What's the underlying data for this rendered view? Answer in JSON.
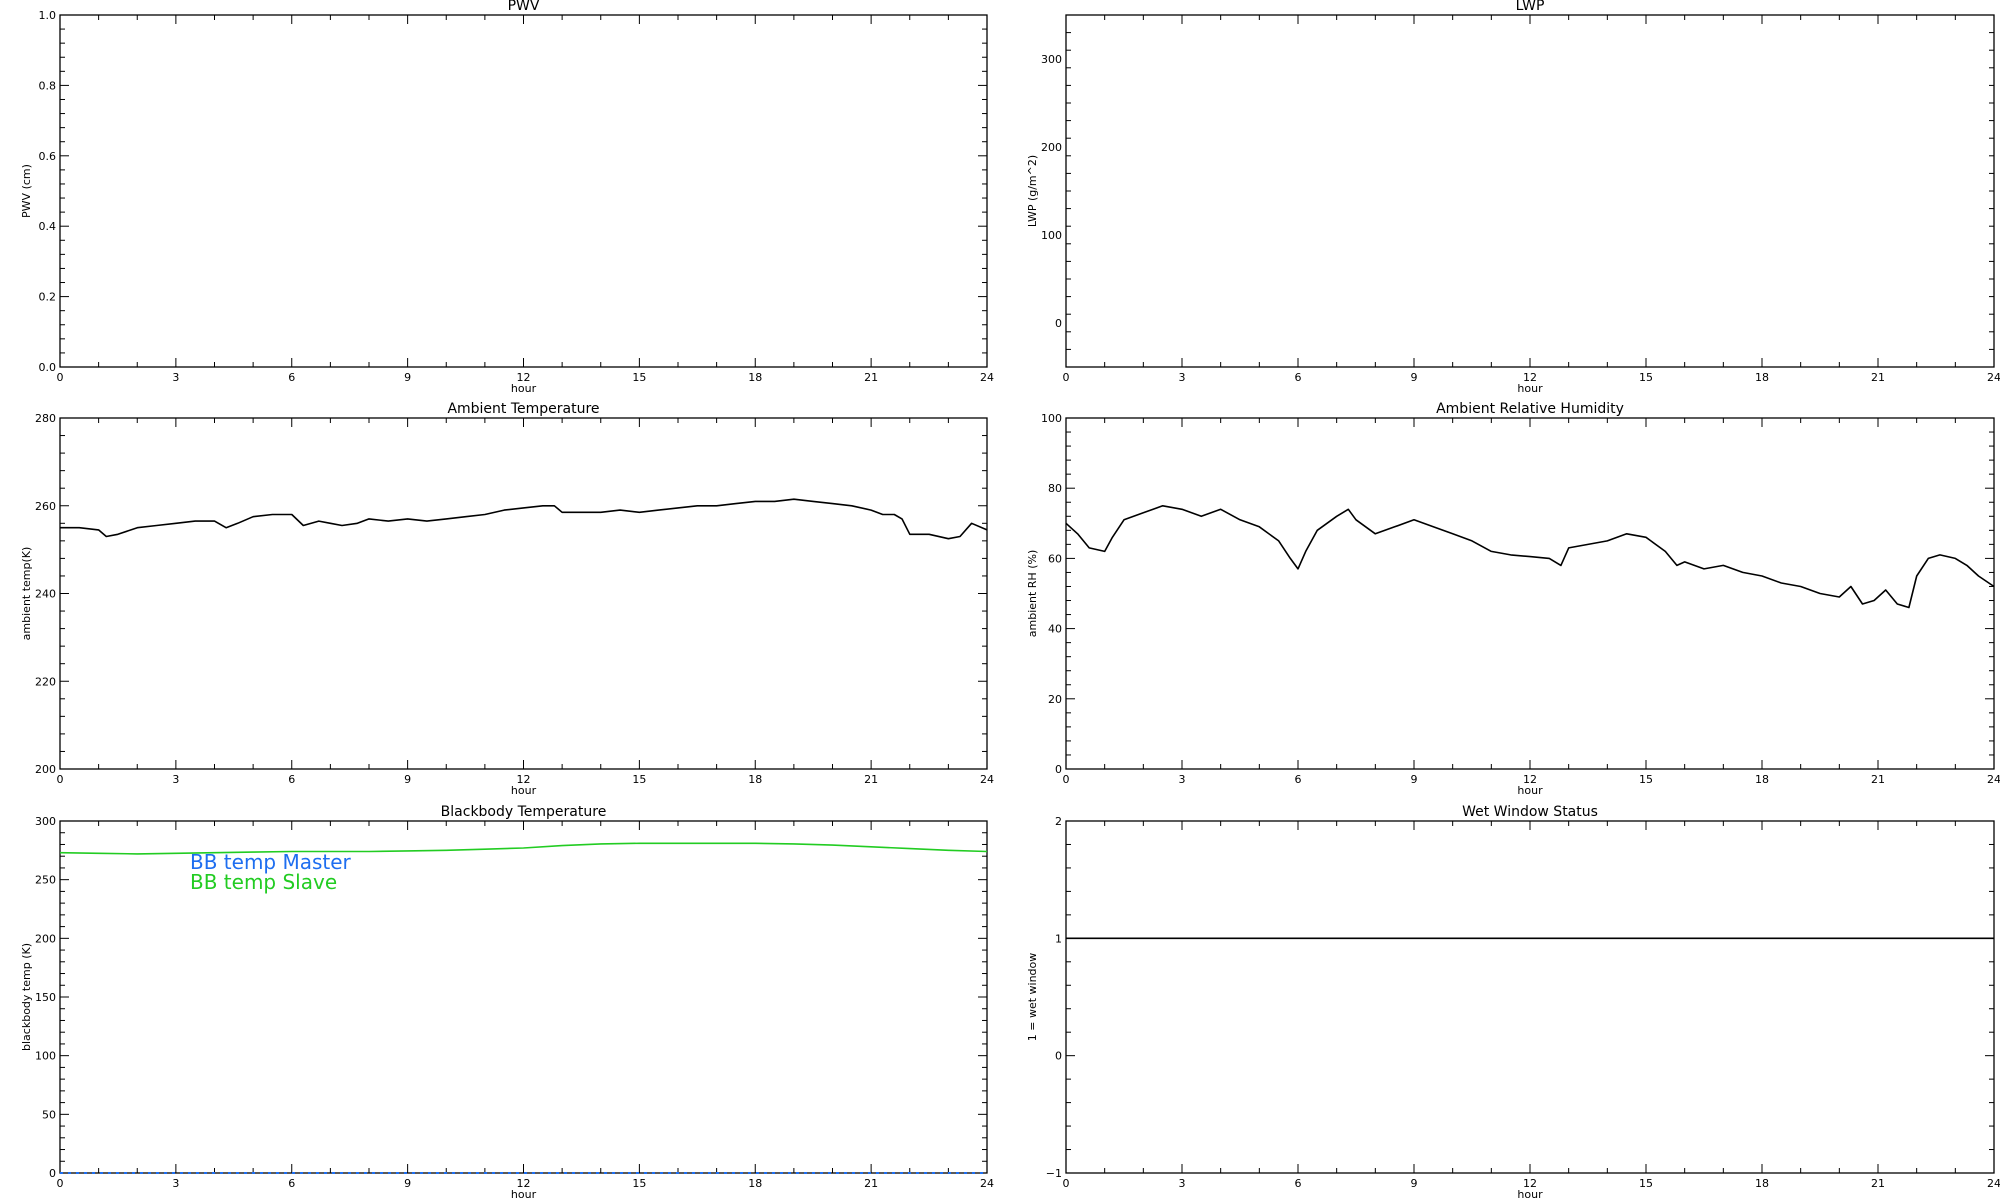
{
  "chart_data": [
    {
      "type": "line",
      "title": "PWV",
      "xlabel": "hour",
      "ylabel": "PWV (cm)",
      "xlim": [
        0,
        24
      ],
      "ylim": [
        0,
        1
      ],
      "xticks": [
        "0",
        "3",
        "6",
        "9",
        "12",
        "15",
        "18",
        "21",
        "24"
      ],
      "yticks": [
        "0.0",
        "0.2",
        "0.4",
        "0.6",
        "0.8",
        "1.0"
      ],
      "yvals": [
        0,
        0.2,
        0.4,
        0.6,
        0.8,
        1.0
      ],
      "series": []
    },
    {
      "type": "line",
      "title": "LWP",
      "xlabel": "hour",
      "ylabel": "LWP (g/m^2)",
      "xlim": [
        0,
        24
      ],
      "ylim": [
        -50,
        350
      ],
      "xticks": [
        "0",
        "3",
        "6",
        "9",
        "12",
        "15",
        "18",
        "21",
        "24"
      ],
      "yticks": [
        "0",
        "100",
        "200",
        "300"
      ],
      "yvals": [
        0,
        100,
        200,
        300
      ],
      "series": []
    },
    {
      "type": "line",
      "title": "Ambient Temperature",
      "xlabel": "hour",
      "ylabel": "ambient temp(K)",
      "xlim": [
        0,
        24
      ],
      "ylim": [
        200,
        280
      ],
      "xticks": [
        "0",
        "3",
        "6",
        "9",
        "12",
        "15",
        "18",
        "21",
        "24"
      ],
      "yticks": [
        "200",
        "220",
        "240",
        "260",
        "280"
      ],
      "yvals": [
        200,
        220,
        240,
        260,
        280
      ],
      "series": [
        {
          "color": "#000000",
          "x": [
            0,
            0.5,
            1,
            1.2,
            1.5,
            2,
            2.5,
            3,
            3.5,
            4,
            4.3,
            4.6,
            5,
            5.5,
            6,
            6.3,
            6.7,
            7,
            7.3,
            7.7,
            8,
            8.5,
            9,
            9.5,
            10,
            10.5,
            11,
            11.5,
            12,
            12.5,
            12.8,
            13,
            13.5,
            14,
            14.5,
            15,
            15.5,
            16,
            16.5,
            17,
            17.5,
            18,
            18.5,
            19,
            19.5,
            20,
            20.5,
            21,
            21.3,
            21.6,
            21.8,
            22,
            22.5,
            23,
            23.3,
            23.6,
            24
          ],
          "y": [
            255,
            255,
            254.5,
            253,
            253.5,
            255,
            255.5,
            256,
            256.5,
            256.5,
            255,
            256,
            257.5,
            258,
            258,
            255.5,
            256.5,
            256,
            255.5,
            256,
            257,
            256.5,
            257,
            256.5,
            257,
            257.5,
            258,
            259,
            259.5,
            260,
            260,
            258.5,
            258.5,
            258.5,
            259,
            258.5,
            259,
            259.5,
            260,
            260,
            260.5,
            261,
            261,
            261.5,
            261,
            260.5,
            260,
            259,
            258,
            258,
            257,
            253.5,
            253.5,
            252.5,
            253,
            256,
            254.5
          ]
        }
      ]
    },
    {
      "type": "line",
      "title": "Ambient Relative Humidity",
      "xlabel": "hour",
      "ylabel": "ambient RH (%)",
      "xlim": [
        0,
        24
      ],
      "ylim": [
        0,
        100
      ],
      "xticks": [
        "0",
        "3",
        "6",
        "9",
        "12",
        "15",
        "18",
        "21",
        "24"
      ],
      "yticks": [
        "0",
        "20",
        "40",
        "60",
        "80",
        "100"
      ],
      "yvals": [
        0,
        20,
        40,
        60,
        80,
        100
      ],
      "series": [
        {
          "color": "#000000",
          "x": [
            0,
            0.3,
            0.6,
            1,
            1.2,
            1.5,
            2,
            2.5,
            3,
            3.5,
            4,
            4.5,
            5,
            5.5,
            5.8,
            6,
            6.2,
            6.5,
            7,
            7.3,
            7.5,
            8,
            8.5,
            9,
            9.5,
            10,
            10.5,
            11,
            11.5,
            12,
            12.5,
            12.8,
            13,
            13.5,
            14,
            14.5,
            15,
            15.5,
            15.8,
            16,
            16.5,
            17,
            17.5,
            18,
            18.5,
            19,
            19.5,
            20,
            20.3,
            20.6,
            20.9,
            21.2,
            21.5,
            21.8,
            22,
            22.3,
            22.6,
            23,
            23.3,
            23.6,
            24
          ],
          "y": [
            70,
            67,
            63,
            62,
            66,
            71,
            73,
            75,
            74,
            72,
            74,
            71,
            69,
            65,
            60,
            57,
            62,
            68,
            72,
            74,
            71,
            67,
            69,
            71,
            69,
            67,
            65,
            62,
            61,
            60.5,
            60,
            58,
            63,
            64,
            65,
            67,
            66,
            62,
            58,
            59,
            57,
            58,
            56,
            55,
            53,
            52,
            50,
            49,
            52,
            47,
            48,
            51,
            47,
            46,
            55,
            60,
            61,
            60,
            58,
            55,
            52
          ]
        }
      ]
    },
    {
      "type": "line",
      "title": "Blackbody Temperature",
      "xlabel": "hour",
      "ylabel": "blackbody temp (K)",
      "xlim": [
        0,
        24
      ],
      "ylim": [
        0,
        300
      ],
      "xticks": [
        "0",
        "3",
        "6",
        "9",
        "12",
        "15",
        "18",
        "21",
        "24"
      ],
      "yticks": [
        "0",
        "50",
        "100",
        "150",
        "200",
        "250",
        "300"
      ],
      "yvals": [
        0,
        50,
        100,
        150,
        200,
        250,
        300
      ],
      "legend": [
        "BB temp Master",
        "BB temp Slave"
      ],
      "series": [
        {
          "name": "BB temp Master",
          "color": "#1e6ef0",
          "x": [
            0,
            24
          ],
          "y": [
            0,
            0
          ]
        },
        {
          "name": "BB temp Slave",
          "color": "#22cc22",
          "x": [
            0,
            1,
            2,
            3,
            4,
            5,
            6,
            7,
            8,
            9,
            10,
            11,
            12,
            13,
            14,
            15,
            16,
            17,
            18,
            19,
            20,
            21,
            22,
            23,
            24
          ],
          "y": [
            273,
            272.5,
            272,
            272.5,
            273,
            273.5,
            274,
            274,
            274,
            274.5,
            275,
            276,
            277,
            279,
            280.5,
            281,
            281,
            281,
            281,
            280.5,
            279.5,
            278,
            276.5,
            275,
            274
          ]
        }
      ]
    },
    {
      "type": "line",
      "title": "Wet Window Status",
      "xlabel": "hour",
      "ylabel": "1 = wet window",
      "xlim": [
        0,
        24
      ],
      "ylim": [
        -1,
        2
      ],
      "xticks": [
        "0",
        "3",
        "6",
        "9",
        "12",
        "15",
        "18",
        "21",
        "24"
      ],
      "yticks": [
        "−1",
        "0",
        "1",
        "2"
      ],
      "yvals": [
        -1,
        0,
        1,
        2
      ],
      "series": [
        {
          "color": "#000000",
          "x": [
            0,
            24
          ],
          "y": [
            1,
            1
          ]
        }
      ]
    }
  ]
}
